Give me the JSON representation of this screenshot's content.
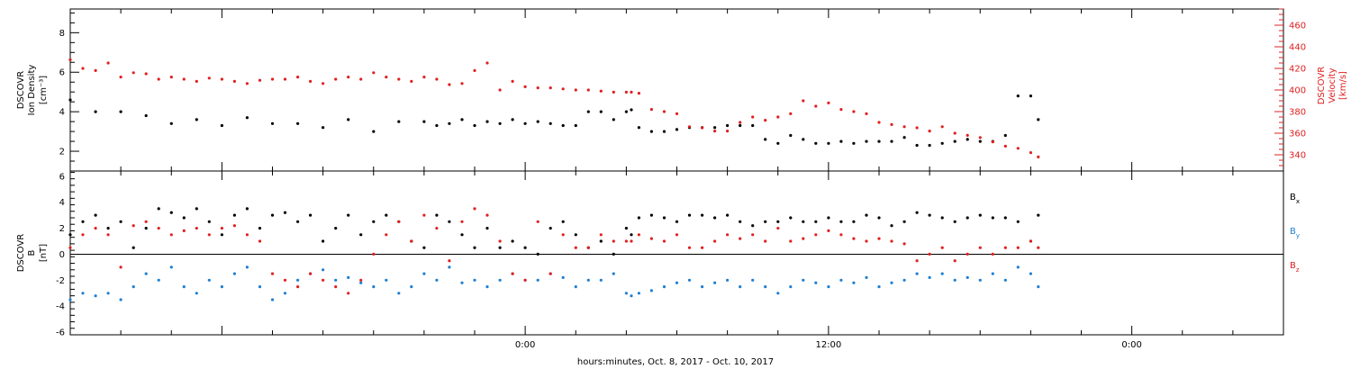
{
  "xlabel": "hours:minutes, Oct. 8, 2017 - Oct. 10, 2017",
  "chart_data": [
    {
      "type": "scatter",
      "panel": "plasma",
      "ylabel_left": [
        "DSCOVR",
        "Ion Density",
        "[cm⁻³]"
      ],
      "ylabel_right": [
        "DSCOVR",
        "Velocity",
        "[km/s]"
      ],
      "x_unit": "hours relative to 00:00 Oct. 9, 2017",
      "xlim": [
        -18,
        30
      ],
      "ylim_left": [
        1,
        9.2
      ],
      "ylim_right": [
        325,
        475
      ],
      "left_ticks": [
        2,
        4,
        6,
        8
      ],
      "right_ticks": [
        340,
        360,
        380,
        400,
        420,
        440,
        460
      ],
      "x_tick_labels": [
        {
          "x": 0,
          "label": "0:00"
        },
        {
          "x": 12,
          "label": "12:00"
        },
        {
          "x": 24,
          "label": "0:00"
        }
      ],
      "grid": false,
      "series": [
        {
          "name": "",
          "axis": "left",
          "color": "#000000",
          "x": [
            -18,
            -17,
            -16,
            -15,
            -14,
            -13,
            -12,
            -11,
            -10,
            -9,
            -8,
            -7,
            -6,
            -5,
            -4,
            -3.5,
            -3,
            -2.5,
            -2,
            -1.5,
            -1,
            -0.5,
            0,
            0.5,
            1,
            1.5,
            2,
            2.5,
            3,
            3.5,
            4,
            4.2,
            4.5,
            5,
            5.5,
            6,
            6.5,
            7,
            7.5,
            8,
            8.5,
            9,
            9.5,
            10,
            10.5,
            11,
            11.5,
            12,
            12.5,
            13,
            13.5,
            14,
            14.5,
            15,
            15.5,
            16,
            16.5,
            17,
            17.5,
            18,
            18.5,
            19,
            19.5,
            20,
            20.3
          ],
          "y": [
            4.6,
            4.0,
            4.0,
            3.8,
            3.4,
            3.6,
            3.3,
            3.7,
            3.4,
            3.4,
            3.2,
            3.6,
            3.0,
            3.5,
            3.5,
            3.3,
            3.4,
            3.6,
            3.3,
            3.5,
            3.4,
            3.6,
            3.4,
            3.5,
            3.4,
            3.3,
            3.3,
            4.0,
            4.0,
            3.6,
            4.0,
            4.1,
            3.2,
            3.0,
            3.0,
            3.1,
            3.2,
            3.2,
            3.2,
            3.3,
            3.3,
            3.3,
            2.6,
            2.4,
            2.8,
            2.6,
            2.4,
            2.4,
            2.5,
            2.4,
            2.5,
            2.5,
            2.5,
            2.7,
            2.3,
            2.3,
            2.4,
            2.5,
            2.6,
            2.5,
            2.5,
            2.8,
            4.8,
            4.8,
            3.6
          ]
        },
        {
          "name": "",
          "axis": "right",
          "color": "#e02020",
          "x": [
            -18,
            -17.5,
            -17,
            -16.5,
            -16,
            -15.5,
            -15,
            -14.5,
            -14,
            -13.5,
            -13,
            -12.5,
            -12,
            -11.5,
            -11,
            -10.5,
            -10,
            -9.5,
            -9,
            -8.5,
            -8,
            -7.5,
            -7,
            -6.5,
            -6,
            -5.5,
            -5,
            -4.5,
            -4,
            -3.5,
            -3,
            -2.5,
            -2,
            -1.5,
            -1,
            -0.5,
            0,
            0.5,
            1,
            1.5,
            2,
            2.5,
            3,
            3.5,
            4,
            4.2,
            4.5,
            5,
            5.5,
            6,
            6.5,
            7,
            7.5,
            8,
            8.5,
            9,
            9.5,
            10,
            10.5,
            11,
            11.5,
            12,
            12.5,
            13,
            13.5,
            14,
            14.5,
            15,
            15.5,
            16,
            16.5,
            17,
            17.5,
            18,
            18.5,
            19,
            19.5,
            20,
            20.3
          ],
          "y": [
            428,
            420,
            418,
            425,
            412,
            416,
            415,
            410,
            412,
            410,
            408,
            411,
            410,
            408,
            406,
            409,
            410,
            410,
            412,
            408,
            406,
            410,
            412,
            410,
            416,
            412,
            410,
            408,
            412,
            410,
            405,
            406,
            418,
            425,
            400,
            408,
            403,
            402,
            402,
            401,
            400,
            400,
            399,
            398,
            398,
            398,
            397,
            382,
            380,
            378,
            366,
            365,
            362,
            362,
            370,
            375,
            372,
            375,
            378,
            390,
            385,
            388,
            382,
            380,
            378,
            370,
            368,
            366,
            365,
            362,
            366,
            360,
            358,
            356,
            352,
            348,
            346,
            342,
            338
          ]
        }
      ]
    },
    {
      "type": "scatter",
      "panel": "magnetic field",
      "ylabel_left": [
        "DSCOVR",
        "B",
        "[nT]"
      ],
      "x_unit": "hours relative to 00:00 Oct. 9, 2017",
      "xlim": [
        -18,
        30
      ],
      "ylim": [
        -6.2,
        6.4
      ],
      "left_ticks": [
        -6,
        -4,
        -2,
        0,
        2,
        4,
        6
      ],
      "x_tick_labels": [
        {
          "x": 0,
          "label": "0:00"
        },
        {
          "x": 12,
          "label": "12:00"
        },
        {
          "x": 24,
          "label": "0:00"
        }
      ],
      "zero_line": true,
      "legend_position": "right",
      "series": [
        {
          "name": "Bx",
          "name_main": "B",
          "name_sub": "x",
          "color": "#000000",
          "x": [
            -18,
            -17.5,
            -17,
            -16.5,
            -16,
            -15.5,
            -15,
            -14.5,
            -14,
            -13.5,
            -13,
            -12.5,
            -12,
            -11.5,
            -11,
            -10.5,
            -10,
            -9.5,
            -9,
            -8.5,
            -8,
            -7.5,
            -7,
            -6.5,
            -6,
            -5.5,
            -5,
            -4.5,
            -4,
            -3.5,
            -3,
            -2.5,
            -2,
            -1.5,
            -1,
            -0.5,
            0,
            0.5,
            1,
            1.5,
            2,
            2.5,
            3,
            3.5,
            4,
            4.2,
            4.5,
            5,
            5.5,
            6,
            6.5,
            7,
            7.5,
            8,
            8.5,
            9,
            9.5,
            10,
            10.5,
            11,
            11.5,
            12,
            12.5,
            13,
            13.5,
            14,
            14.5,
            15,
            15.5,
            16,
            16.5,
            17,
            17.5,
            18,
            18.5,
            19,
            19.5,
            20,
            20.3
          ],
          "y": [
            1.5,
            2.5,
            3.0,
            2.0,
            2.5,
            0.5,
            2.0,
            3.5,
            3.2,
            2.8,
            3.5,
            2.5,
            1.5,
            3.0,
            3.5,
            2.0,
            3.0,
            3.2,
            2.5,
            3.0,
            1.0,
            2.0,
            3.0,
            1.5,
            2.5,
            3.0,
            2.5,
            1.0,
            0.5,
            3.0,
            2.5,
            1.5,
            0.5,
            2.0,
            0.5,
            1.0,
            0.5,
            0.0,
            2.0,
            2.5,
            1.5,
            0.5,
            1.0,
            0.0,
            2.0,
            1.5,
            2.8,
            3.0,
            2.8,
            2.5,
            3.0,
            3.0,
            2.8,
            3.0,
            2.5,
            2.2,
            2.5,
            2.5,
            2.8,
            2.5,
            2.5,
            2.8,
            2.5,
            2.5,
            3.0,
            2.8,
            2.2,
            2.5,
            3.2,
            3.0,
            2.8,
            2.5,
            2.8,
            3.0,
            2.8,
            2.8,
            2.5,
            1.0,
            3.0
          ]
        },
        {
          "name": "By",
          "name_main": "B",
          "name_sub": "y",
          "color": "#1f7fd1",
          "x": [
            -18,
            -17.5,
            -17,
            -16.5,
            -16,
            -15.5,
            -15,
            -14.5,
            -14,
            -13.5,
            -13,
            -12.5,
            -12,
            -11.5,
            -11,
            -10.5,
            -10,
            -9.5,
            -9,
            -8.5,
            -8,
            -7.5,
            -7,
            -6.5,
            -6,
            -5.5,
            -5,
            -4.5,
            -4,
            -3.5,
            -3,
            -2.5,
            -2,
            -1.5,
            -1,
            -0.5,
            0,
            0.5,
            1,
            1.5,
            2,
            2.5,
            3,
            3.5,
            4,
            4.2,
            4.5,
            5,
            5.5,
            6,
            6.5,
            7,
            7.5,
            8,
            8.5,
            9,
            9.5,
            10,
            10.5,
            11,
            11.5,
            12,
            12.5,
            13,
            13.5,
            14,
            14.5,
            15,
            15.5,
            16,
            16.5,
            17,
            17.5,
            18,
            18.5,
            19,
            19.5,
            20,
            20.3
          ],
          "y": [
            -3.5,
            -3.0,
            -3.2,
            -3.0,
            -3.5,
            -2.5,
            -1.5,
            -2.0,
            -1.0,
            -2.5,
            -3.0,
            -2.0,
            -2.5,
            -1.5,
            -1.0,
            -2.5,
            -3.5,
            -3.0,
            -2.0,
            -1.5,
            -1.2,
            -2.0,
            -1.8,
            -2.2,
            -2.5,
            -2.0,
            -3.0,
            -2.5,
            -1.5,
            -2.0,
            -1.0,
            -2.2,
            -2.0,
            -2.5,
            -2.0,
            -1.5,
            -2.0,
            -2.0,
            -1.5,
            -1.8,
            -2.5,
            -2.0,
            -2.0,
            -1.5,
            -3.0,
            -3.2,
            -3.0,
            -2.8,
            -2.5,
            -2.2,
            -2.0,
            -2.5,
            -2.2,
            -2.0,
            -2.5,
            -2.0,
            -2.5,
            -3.0,
            -2.5,
            -2.0,
            -2.2,
            -2.5,
            -2.0,
            -2.2,
            -1.8,
            -2.5,
            -2.2,
            -2.0,
            -1.5,
            -1.8,
            -1.5,
            -2.0,
            -1.8,
            -2.0,
            -1.5,
            -2.0,
            -1.0,
            -1.5,
            -2.5
          ]
        },
        {
          "name": "Bz",
          "name_main": "B",
          "name_sub": "z",
          "color": "#e02020",
          "x": [
            -18,
            -17.5,
            -17,
            -16.5,
            -16,
            -15.5,
            -15,
            -14.5,
            -14,
            -13.5,
            -13,
            -12.5,
            -12,
            -11.5,
            -11,
            -10.5,
            -10,
            -9.5,
            -9,
            -8.5,
            -8,
            -7.5,
            -7,
            -6.5,
            -6,
            -5.5,
            -5,
            -4.5,
            -4,
            -3.5,
            -3,
            -2.5,
            -2,
            -1.5,
            -1,
            -0.5,
            0,
            0.5,
            1,
            1.5,
            2,
            2.5,
            3,
            3.5,
            4,
            4.2,
            4.5,
            5,
            5.5,
            6,
            6.5,
            7,
            7.5,
            8,
            8.5,
            9,
            9.5,
            10,
            10.5,
            11,
            11.5,
            12,
            12.5,
            13,
            13.5,
            14,
            14.5,
            15,
            15.5,
            16,
            16.5,
            17,
            17.5,
            18,
            18.5,
            19,
            19.5,
            20,
            20.3
          ],
          "y": [
            0.5,
            1.5,
            2.0,
            1.5,
            -1.0,
            2.2,
            2.5,
            2.0,
            1.5,
            1.8,
            2.0,
            1.5,
            2.0,
            2.2,
            1.5,
            1.0,
            -1.5,
            -2.0,
            -2.5,
            -1.5,
            -2.0,
            -2.5,
            -3.0,
            -2.0,
            0.0,
            1.5,
            2.5,
            1.0,
            3.0,
            2.0,
            -0.5,
            2.5,
            3.5,
            3.0,
            1.0,
            -1.5,
            -2.0,
            2.5,
            -1.5,
            1.5,
            0.5,
            0.5,
            1.5,
            1.0,
            1.0,
            1.0,
            1.5,
            1.2,
            1.0,
            1.5,
            0.5,
            0.5,
            1.0,
            1.5,
            1.2,
            1.5,
            1.0,
            2.0,
            1.0,
            1.2,
            1.5,
            1.8,
            1.5,
            1.2,
            1.0,
            1.2,
            1.0,
            0.8,
            -0.5,
            0.0,
            0.5,
            -0.5,
            0.0,
            0.5,
            0.0,
            0.5,
            0.5,
            1.0,
            0.5
          ]
        }
      ]
    }
  ]
}
